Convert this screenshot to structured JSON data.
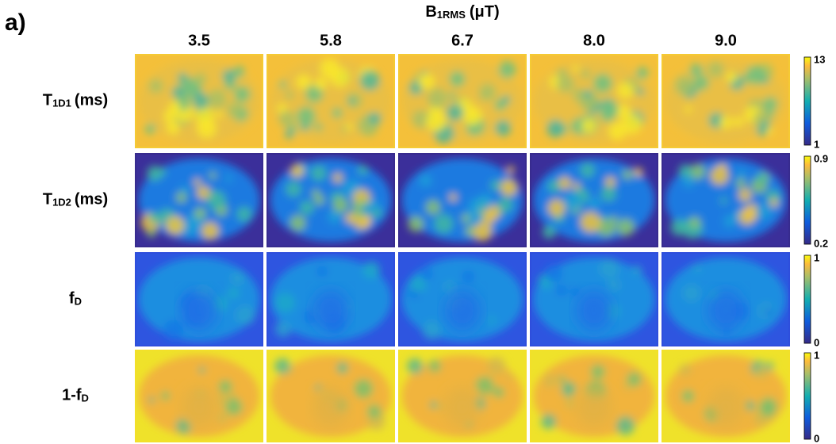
{
  "panel_label": "a)",
  "header": {
    "main": "B",
    "sub": "1RMS",
    "unit": "(μT)"
  },
  "columns": [
    "3.5",
    "5.8",
    "6.7",
    "8.0",
    "9.0"
  ],
  "rows": [
    {
      "label": {
        "main": "T",
        "sub": "1D1",
        "unit": "(ms)"
      },
      "colorbar": {
        "max": "13",
        "min": "1"
      }
    },
    {
      "label": {
        "main": "T",
        "sub": "1D2",
        "unit": "(ms)"
      },
      "colorbar": {
        "max": "0.9",
        "min": "0.2"
      }
    },
    {
      "label": {
        "main": "f",
        "sub": "D",
        "unit": ""
      },
      "colorbar": {
        "max": "1",
        "min": "0"
      }
    },
    {
      "label": {
        "main": "1-f",
        "sub": "D",
        "unit": ""
      },
      "colorbar": {
        "max": "1",
        "min": "0"
      }
    }
  ]
}
